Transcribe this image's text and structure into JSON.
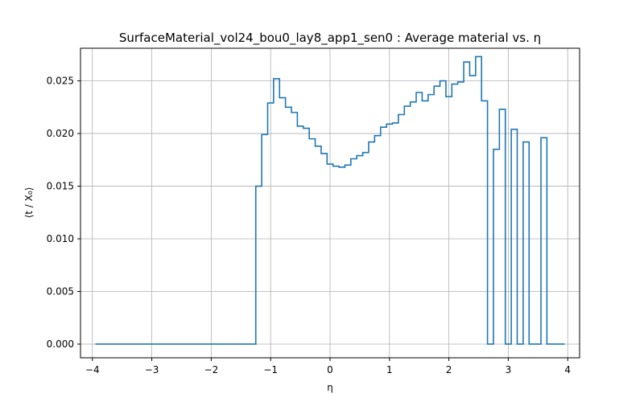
{
  "chart_data": {
    "type": "line",
    "drawstyle": "steps-post",
    "title": "SurfaceMaterial_vol24_bou0_lay8_app1_sen0 : Average material vs. η",
    "xlabel": "η",
    "ylabel": "⟨t / X₀⟩",
    "xlim": [
      -4.2,
      4.2
    ],
    "ylim": [
      -0.0013,
      0.0281
    ],
    "grid": true,
    "colors": {
      "line": "#1f77b4",
      "grid": "#b0b0b0",
      "axes": "#000000"
    },
    "x_ticks": [
      {
        "value": -4,
        "label": "−4"
      },
      {
        "value": -3,
        "label": "−3"
      },
      {
        "value": -2,
        "label": "−2"
      },
      {
        "value": -1,
        "label": "−1"
      },
      {
        "value": 0,
        "label": "0"
      },
      {
        "value": 1,
        "label": "1"
      },
      {
        "value": 2,
        "label": "2"
      },
      {
        "value": 3,
        "label": "3"
      },
      {
        "value": 4,
        "label": "4"
      }
    ],
    "y_ticks": [
      {
        "value": 0.0,
        "label": "0.000"
      },
      {
        "value": 0.005,
        "label": "0.005"
      },
      {
        "value": 0.01,
        "label": "0.010"
      },
      {
        "value": 0.015,
        "label": "0.015"
      },
      {
        "value": 0.02,
        "label": "0.020"
      },
      {
        "value": 0.025,
        "label": "0.025"
      }
    ],
    "series": [
      {
        "points": [
          [
            -3.95,
            0.0
          ],
          [
            -1.25,
            0.0
          ],
          [
            -1.25,
            0.015
          ],
          [
            -1.15,
            0.015
          ],
          [
            -1.15,
            0.0199
          ],
          [
            -1.05,
            0.0199
          ],
          [
            -1.05,
            0.0229
          ],
          [
            -0.95,
            0.0229
          ],
          [
            -0.95,
            0.0252
          ],
          [
            -0.85,
            0.0252
          ],
          [
            -0.85,
            0.0234
          ],
          [
            -0.75,
            0.0234
          ],
          [
            -0.75,
            0.0225
          ],
          [
            -0.65,
            0.0225
          ],
          [
            -0.65,
            0.022
          ],
          [
            -0.55,
            0.022
          ],
          [
            -0.55,
            0.0207
          ],
          [
            -0.45,
            0.0207
          ],
          [
            -0.45,
            0.0205
          ],
          [
            -0.35,
            0.0205
          ],
          [
            -0.35,
            0.0195
          ],
          [
            -0.25,
            0.0195
          ],
          [
            -0.25,
            0.0188
          ],
          [
            -0.15,
            0.0188
          ],
          [
            -0.15,
            0.0181
          ],
          [
            -0.05,
            0.0181
          ],
          [
            -0.05,
            0.0171
          ],
          [
            0.05,
            0.0171
          ],
          [
            0.05,
            0.0169
          ],
          [
            0.15,
            0.0169
          ],
          [
            0.15,
            0.0168
          ],
          [
            0.25,
            0.0168
          ],
          [
            0.25,
            0.017
          ],
          [
            0.35,
            0.017
          ],
          [
            0.35,
            0.0176
          ],
          [
            0.45,
            0.0176
          ],
          [
            0.45,
            0.0179
          ],
          [
            0.55,
            0.0179
          ],
          [
            0.55,
            0.0182
          ],
          [
            0.65,
            0.0182
          ],
          [
            0.65,
            0.0192
          ],
          [
            0.75,
            0.0192
          ],
          [
            0.75,
            0.0198
          ],
          [
            0.85,
            0.0198
          ],
          [
            0.85,
            0.0206
          ],
          [
            0.95,
            0.0206
          ],
          [
            0.95,
            0.0209
          ],
          [
            1.05,
            0.0209
          ],
          [
            1.05,
            0.021
          ],
          [
            1.15,
            0.021
          ],
          [
            1.15,
            0.0218
          ],
          [
            1.25,
            0.0218
          ],
          [
            1.25,
            0.0226
          ],
          [
            1.35,
            0.0226
          ],
          [
            1.35,
            0.023
          ],
          [
            1.45,
            0.023
          ],
          [
            1.45,
            0.0239
          ],
          [
            1.55,
            0.0239
          ],
          [
            1.55,
            0.0231
          ],
          [
            1.65,
            0.0231
          ],
          [
            1.65,
            0.0237
          ],
          [
            1.75,
            0.0237
          ],
          [
            1.75,
            0.0245
          ],
          [
            1.85,
            0.0245
          ],
          [
            1.85,
            0.025
          ],
          [
            1.95,
            0.025
          ],
          [
            1.95,
            0.0235
          ],
          [
            2.05,
            0.0235
          ],
          [
            2.05,
            0.0247
          ],
          [
            2.15,
            0.0247
          ],
          [
            2.15,
            0.0249
          ],
          [
            2.25,
            0.0249
          ],
          [
            2.25,
            0.0268
          ],
          [
            2.35,
            0.0268
          ],
          [
            2.35,
            0.0255
          ],
          [
            2.45,
            0.0255
          ],
          [
            2.45,
            0.0273
          ],
          [
            2.55,
            0.0273
          ],
          [
            2.55,
            0.0231
          ],
          [
            2.65,
            0.0231
          ],
          [
            2.65,
            0.0
          ],
          [
            2.75,
            0.0
          ],
          [
            2.75,
            0.0185
          ],
          [
            2.85,
            0.0185
          ],
          [
            2.85,
            0.0223
          ],
          [
            2.95,
            0.0223
          ],
          [
            2.95,
            0.0
          ],
          [
            3.05,
            0.0
          ],
          [
            3.05,
            0.0204
          ],
          [
            3.15,
            0.0204
          ],
          [
            3.15,
            0.0
          ],
          [
            3.25,
            0.0
          ],
          [
            3.25,
            0.0192
          ],
          [
            3.35,
            0.0192
          ],
          [
            3.35,
            0.0
          ],
          [
            3.55,
            0.0
          ],
          [
            3.55,
            0.0196
          ],
          [
            3.65,
            0.0196
          ],
          [
            3.65,
            0.0
          ],
          [
            3.95,
            0.0
          ]
        ]
      }
    ]
  }
}
